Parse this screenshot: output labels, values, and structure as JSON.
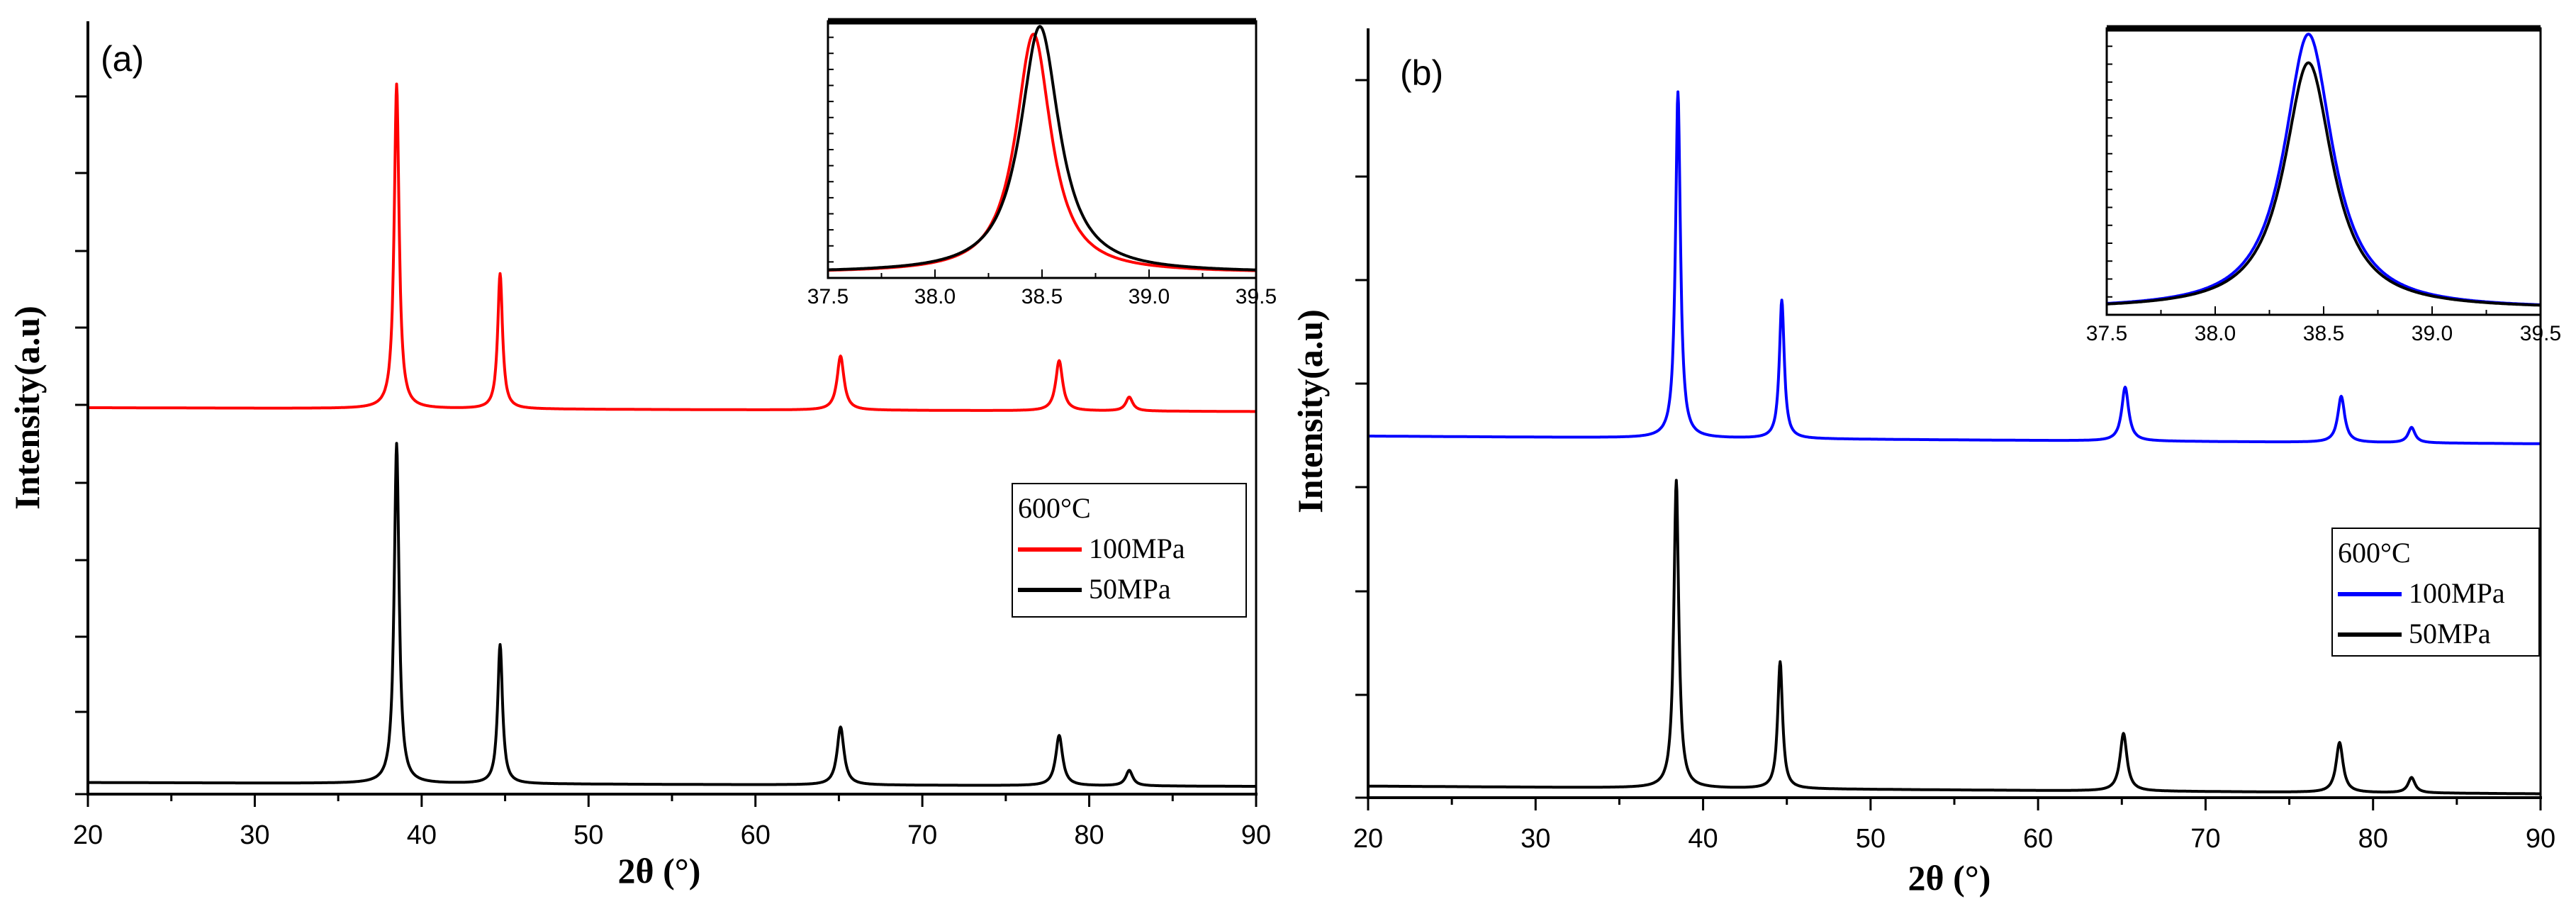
{
  "figure": {
    "panels": [
      {
        "id": "a",
        "panel_label": "(a)",
        "xlabel": "2θ (°)",
        "ylabel": "Intensity(a.u)",
        "x_ticks": [
          "20",
          "30",
          "40",
          "50",
          "60",
          "70",
          "80",
          "90"
        ],
        "legend": {
          "title": "600°C",
          "entries": [
            "100MPa",
            "50MPa"
          ]
        },
        "inset_x_ticks": [
          "37.5",
          "38.0",
          "38.5",
          "39.0",
          "39.5"
        ]
      },
      {
        "id": "b",
        "panel_label": "(b)",
        "xlabel": "2θ (°)",
        "ylabel": "Intensity(a.u)",
        "x_ticks": [
          "20",
          "30",
          "40",
          "50",
          "60",
          "70",
          "80",
          "90"
        ],
        "legend": {
          "title": "600°C",
          "entries": [
            "100MPa",
            "50MPa"
          ]
        },
        "inset_x_ticks": [
          "37.5",
          "38.0",
          "38.5",
          "39.0",
          "39.5"
        ]
      }
    ]
  },
  "chart_data": [
    {
      "type": "line",
      "panel": "(a)",
      "title": "",
      "xlabel": "2θ (°)",
      "ylabel": "Intensity(a.u)",
      "xlim": [
        20,
        90
      ],
      "ylim": [
        0,
        100
      ],
      "grid": false,
      "legend_position": "right-middle",
      "legend_title": "600°C",
      "series": [
        {
          "name": "100MPa",
          "color": "#ff0000",
          "baseline_start": 50,
          "baseline_end": 49.5,
          "peaks": [
            {
              "x": 38.5,
              "height": 42,
              "fwhm": 0.35
            },
            {
              "x": 44.7,
              "height": 17.5,
              "fwhm": 0.35
            },
            {
              "x": 65.1,
              "height": 7,
              "fwhm": 0.5
            },
            {
              "x": 78.2,
              "height": 6.5,
              "fwhm": 0.5
            },
            {
              "x": 82.4,
              "height": 1.8,
              "fwhm": 0.5
            }
          ]
        },
        {
          "name": "50MPa",
          "color": "#000000",
          "baseline_start": 1.5,
          "baseline_end": 1,
          "peaks": [
            {
              "x": 38.5,
              "height": 44,
              "fwhm": 0.35
            },
            {
              "x": 44.7,
              "height": 18,
              "fwhm": 0.35
            },
            {
              "x": 65.1,
              "height": 7.5,
              "fwhm": 0.5
            },
            {
              "x": 78.2,
              "height": 6.5,
              "fwhm": 0.5
            },
            {
              "x": 82.4,
              "height": 2,
              "fwhm": 0.5
            }
          ]
        }
      ],
      "inset": {
        "xlim": [
          37.5,
          39.5
        ],
        "x_ticks": [
          37.5,
          38.0,
          38.5,
          39.0,
          39.5
        ],
        "ylim": [
          0,
          100
        ],
        "series": [
          {
            "name": "100MPa",
            "color": "#ff0000",
            "baseline": 2,
            "peak_x": 38.46,
            "height": 93,
            "fwhm": 0.2
          },
          {
            "name": "50MPa",
            "color": "#000000",
            "baseline": 2,
            "peak_x": 38.49,
            "height": 96,
            "fwhm": 0.22
          }
        ]
      }
    },
    {
      "type": "line",
      "panel": "(b)",
      "title": "",
      "xlabel": "2θ (°)",
      "ylabel": "Intensity(a.u)",
      "xlim": [
        20,
        90
      ],
      "ylim": [
        0,
        100
      ],
      "grid": false,
      "legend_position": "right-middle",
      "legend_title": "600°C",
      "series": [
        {
          "name": "100MPa",
          "color": "#0000ff",
          "baseline_start": 47,
          "baseline_end": 46,
          "peaks": [
            {
              "x": 38.5,
              "height": 45,
              "fwhm": 0.35
            },
            {
              "x": 44.7,
              "height": 18,
              "fwhm": 0.35
            },
            {
              "x": 65.2,
              "height": 7,
              "fwhm": 0.5
            },
            {
              "x": 78.1,
              "height": 6,
              "fwhm": 0.5
            },
            {
              "x": 82.3,
              "height": 2,
              "fwhm": 0.5
            }
          ]
        },
        {
          "name": "50MPa",
          "color": "#000000",
          "baseline_start": 1.5,
          "baseline_end": 0.5,
          "peaks": [
            {
              "x": 38.4,
              "height": 40,
              "fwhm": 0.35
            },
            {
              "x": 44.6,
              "height": 16.5,
              "fwhm": 0.35
            },
            {
              "x": 65.1,
              "height": 7.5,
              "fwhm": 0.5
            },
            {
              "x": 78.0,
              "height": 6.5,
              "fwhm": 0.5
            },
            {
              "x": 82.3,
              "height": 2,
              "fwhm": 0.5
            }
          ]
        }
      ],
      "inset": {
        "xlim": [
          37.5,
          39.5
        ],
        "x_ticks": [
          37.5,
          38.0,
          38.5,
          39.0,
          39.5
        ],
        "ylim": [
          0,
          100
        ],
        "series": [
          {
            "name": "100MPa",
            "color": "#0000ff",
            "baseline": 2,
            "peak_x": 38.43,
            "height": 96,
            "fwhm": 0.27
          },
          {
            "name": "50MPa",
            "color": "#000000",
            "baseline": 2,
            "peak_x": 38.43,
            "height": 86,
            "fwhm": 0.27
          }
        ]
      }
    }
  ]
}
